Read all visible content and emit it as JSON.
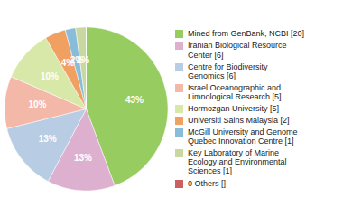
{
  "chart_data": {
    "type": "pie",
    "categories": [
      "Mined from GenBank, NCBI [20]",
      "Iranian Biological Resource\nCenter [6]",
      "Centre for Biodiversity\nGenomics [6]",
      "Israel Oceanographic and\nLimnological Research [5]",
      "Hormozgan University [5]",
      "Universiti Sains Malaysia [2]",
      "McGill University and Genome\nQuebec Innovation Centre [1]",
      "Key Laboratory of Marine\nEcology and Environmental\nSciences [1]",
      "0 Others []"
    ],
    "values": [
      43,
      13,
      13,
      10,
      10,
      4,
      2,
      2,
      0.002
    ],
    "value_labels": [
      "43%",
      "13%",
      "13%",
      "10%",
      "10%",
      "4%",
      "2%",
      "2%",
      null
    ],
    "colors": [
      "#96cc60",
      "#ddb0d0",
      "#b8cce4",
      "#f4b8a8",
      "#d8e8a8",
      "#f0a060",
      "#88bcd8",
      "#c8d8a0",
      "#cc6060"
    ],
    "data_labels": true,
    "legend": "right"
  }
}
